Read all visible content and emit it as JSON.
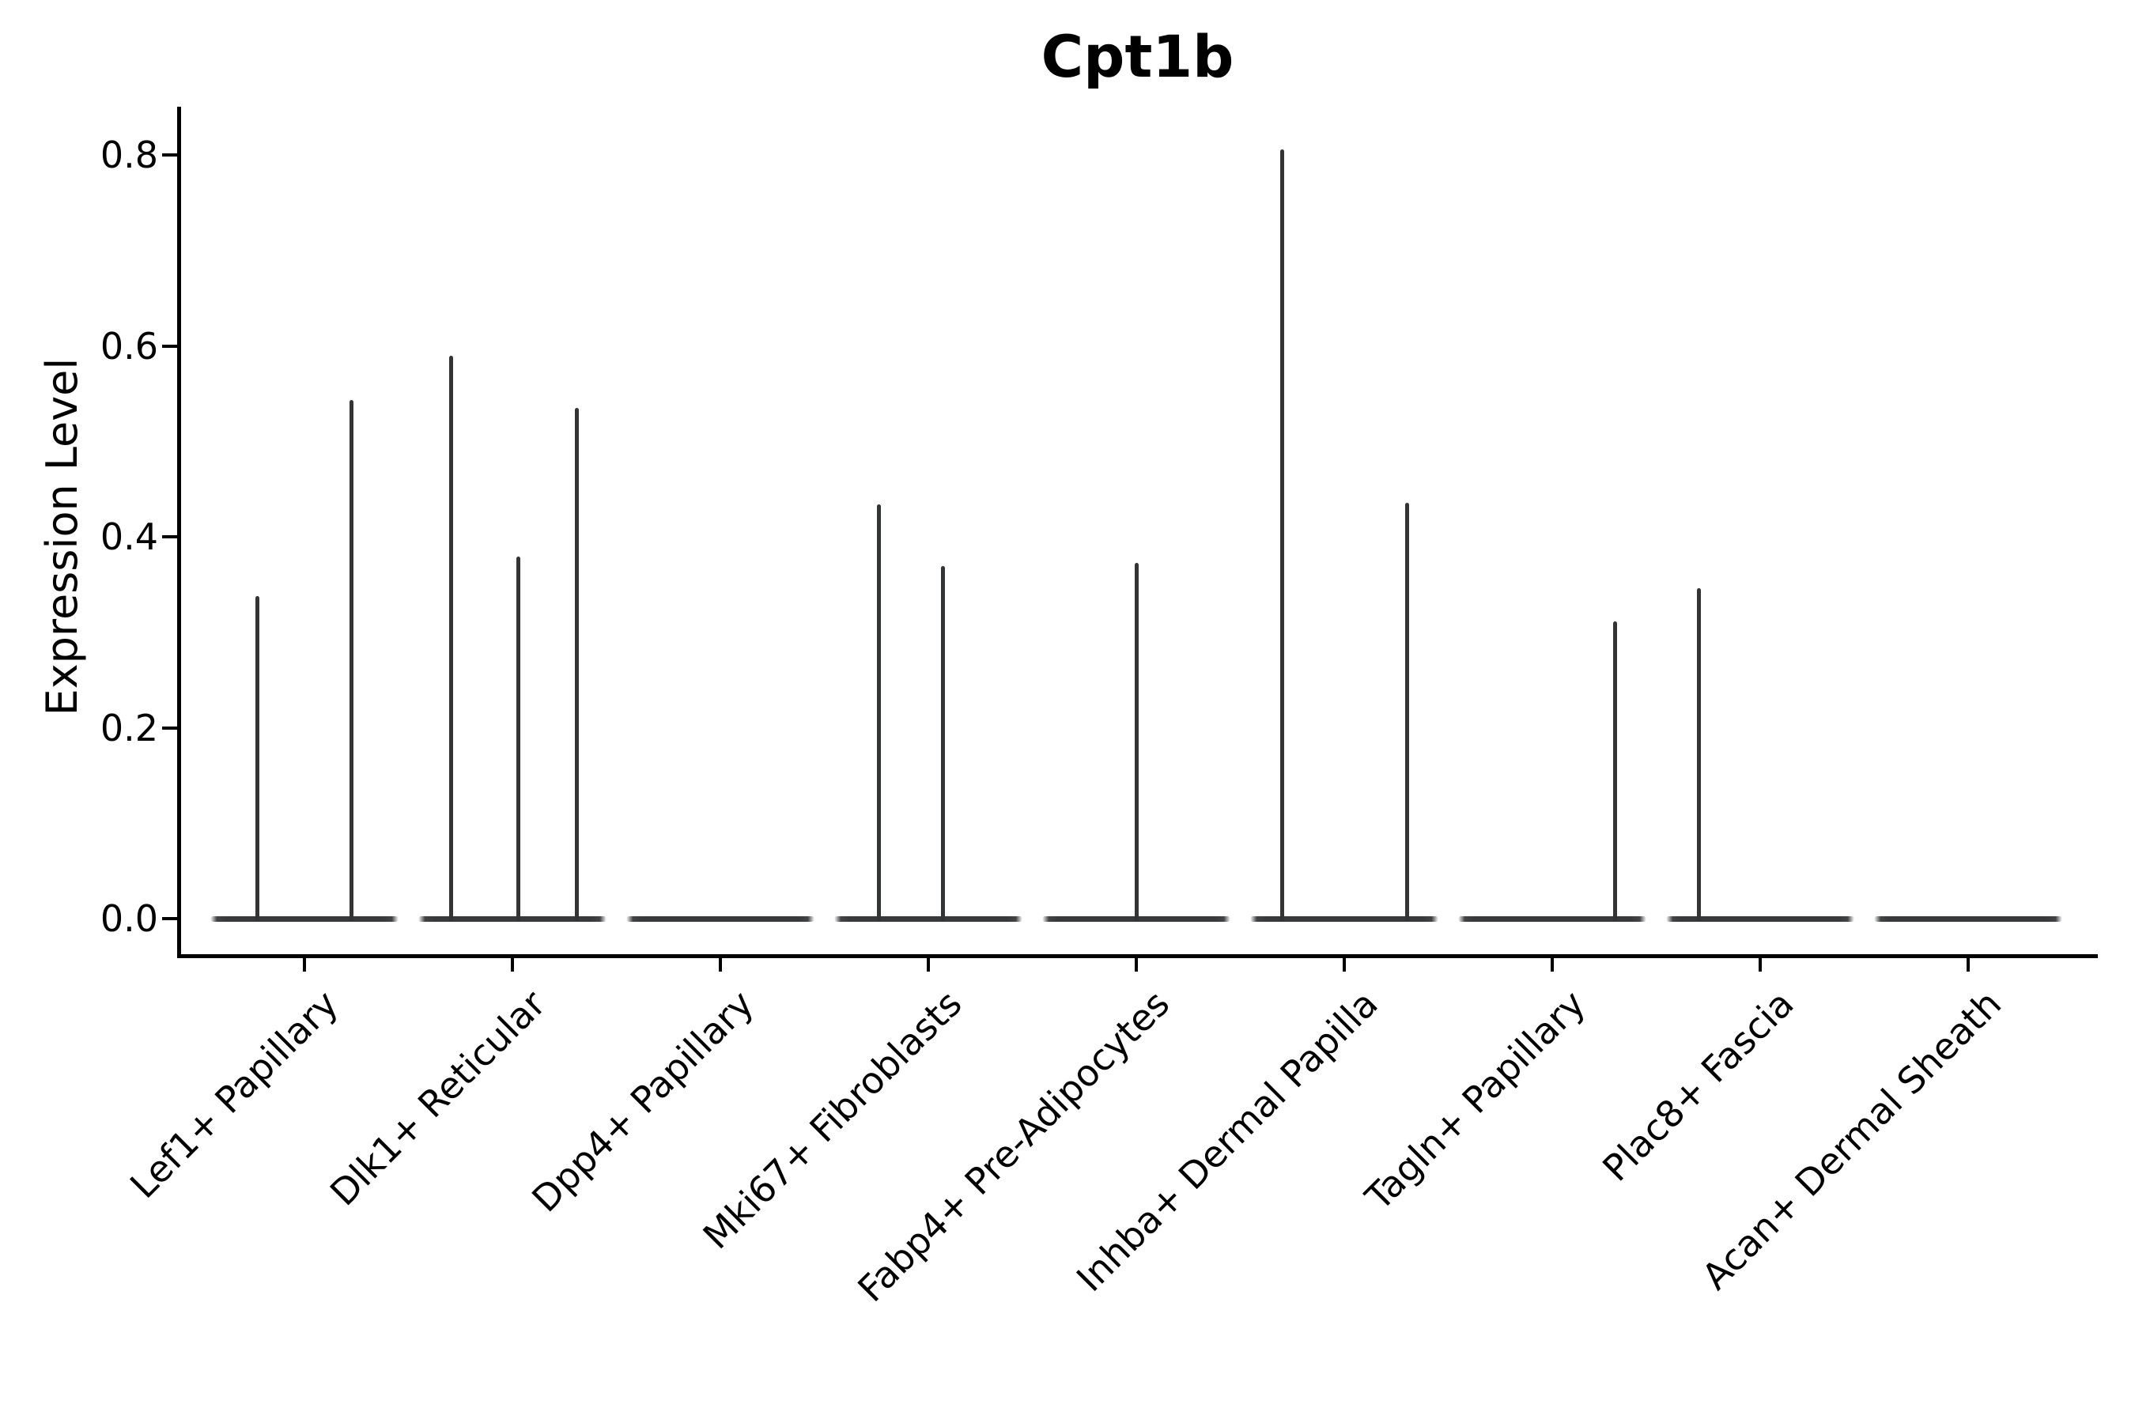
{
  "header": {
    "title": "Cpt1b"
  },
  "axes": {
    "y_label": "Expression Level",
    "y_tick_labels": [
      "0.0",
      "0.2",
      "0.4",
      "0.6",
      "0.8"
    ],
    "x_tick_labels": [
      "Lef1+ Papillary",
      "Dlk1+ Reticular",
      "Dpp4+ Papillary",
      "Mki67+ Fibroblasts",
      "Fabp4+ Pre-Adipocytes",
      "Inhba+ Dermal Papilla",
      "Tagln+ Papillary",
      "Plac8+ Fascia",
      "Acan+ Dermal Sheath"
    ]
  },
  "chart_data": {
    "type": "violin",
    "title": "Cpt1b",
    "xlabel": "",
    "ylabel": "Expression Level",
    "ylim": [
      0,
      0.87
    ],
    "yticks": [
      0.0,
      0.2,
      0.4,
      0.6,
      0.8
    ],
    "grid": false,
    "legend": "none",
    "style": "single-cell expression violin plot; each cell type shows a flat density baseline at 0 with thin needle peaks at expressed values",
    "categories": [
      "Lef1+ Papillary",
      "Dlk1+ Reticular",
      "Dpp4+ Papillary",
      "Mki67+ Fibroblasts",
      "Fabp4+ Pre-Adipocytes",
      "Inhba+ Dermal Papilla",
      "Tagln+ Papillary",
      "Plac8+ Fascia",
      "Acan+ Dermal Sheath"
    ],
    "series": [
      {
        "name": "Lef1+ Papillary",
        "peaks": [
          {
            "dx": -60,
            "value": 0.338
          },
          {
            "dx": 59,
            "value": 0.543
          }
        ]
      },
      {
        "name": "Dlk1+ Reticular",
        "peaks": [
          {
            "dx": -78,
            "value": 0.59
          },
          {
            "dx": 7,
            "value": 0.379
          },
          {
            "dx": 81,
            "value": 0.535
          }
        ]
      },
      {
        "name": "Dpp4+ Papillary",
        "peaks": []
      },
      {
        "name": "Mki67+ Fibroblasts",
        "peaks": [
          {
            "dx": -63,
            "value": 0.434
          },
          {
            "dx": 18,
            "value": 0.369
          }
        ]
      },
      {
        "name": "Fabp4+ Pre-Adipocytes",
        "peaks": [
          {
            "dx": 0,
            "value": 0.373
          }
        ]
      },
      {
        "name": "Inhba+ Dermal Papilla",
        "peaks": [
          {
            "dx": -79,
            "value": 0.806
          },
          {
            "dx": 79,
            "value": 0.436
          }
        ]
      },
      {
        "name": "Tagln+ Papillary",
        "peaks": [
          {
            "dx": 79,
            "value": 0.311
          }
        ]
      },
      {
        "name": "Plac8+ Fascia",
        "peaks": [
          {
            "dx": -78,
            "value": 0.346
          }
        ]
      },
      {
        "name": "Acan+ Dermal Sheath",
        "peaks": []
      }
    ],
    "colors": {
      "line": "#333436",
      "axis": "#000000",
      "background": "#ffffff"
    }
  }
}
